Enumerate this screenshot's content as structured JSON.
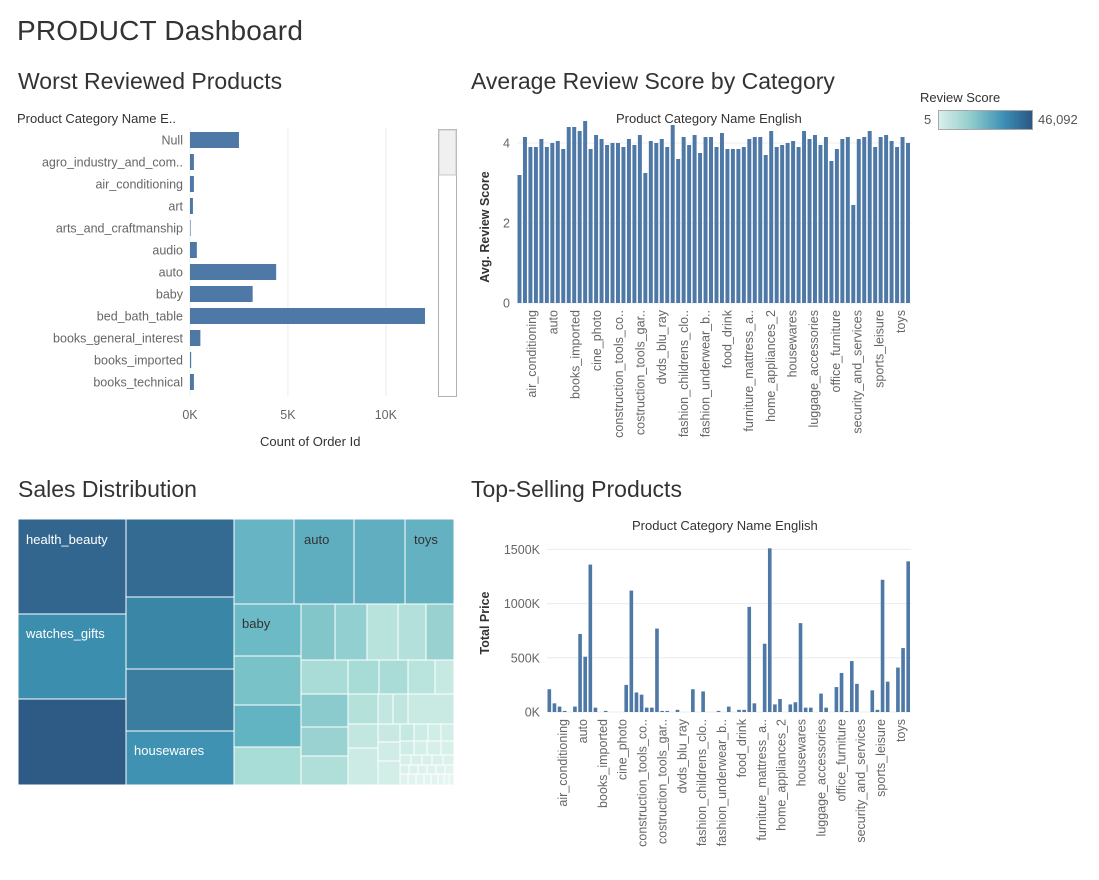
{
  "dashboard": {
    "title": "PRODUCT Dashboard"
  },
  "colors": {
    "bar": "#4e79a7",
    "grid": "#ececec",
    "axis_text": "#666666",
    "legend_low": "#d9efec",
    "legend_high": "#2a5783"
  },
  "worst": {
    "title": "Worst Reviewed Products",
    "header": "Product Category Name E..",
    "xlabel": "Count of Order Id"
  },
  "avg": {
    "title": "Average Review Score by Category",
    "header": "Product Category Name English",
    "ylabel": "Avg. Review Score"
  },
  "legend": {
    "title": "Review Score",
    "min": "5",
    "max": "46,092"
  },
  "sales": {
    "title": "Sales Distribution"
  },
  "top": {
    "title": "Top-Selling Products",
    "header": "Product Category Name English",
    "ylabel": "Total Price"
  },
  "chart_data": [
    {
      "type": "bar",
      "orientation": "horizontal",
      "title": "Worst Reviewed Products",
      "xlabel": "Count of Order Id",
      "ylabel": "Product Category Name E..",
      "xlim": [
        0,
        12500
      ],
      "xticks": [
        0,
        5000,
        10000
      ],
      "xtick_labels": [
        "0K",
        "5K",
        "10K"
      ],
      "categories": [
        "Null",
        "agro_industry_and_com..",
        "air_conditioning",
        "art",
        "arts_and_craftmanship",
        "audio",
        "auto",
        "baby",
        "bed_bath_table",
        "books_general_interest",
        "books_imported",
        "books_technical"
      ],
      "values": [
        2500,
        200,
        200,
        150,
        30,
        350,
        4400,
        3200,
        12000,
        530,
        60,
        200
      ],
      "grid": true
    },
    {
      "type": "bar",
      "title": "Average Review Score by Category",
      "header": "Product Category Name English",
      "ylabel": "Avg. Review Score",
      "ylim": [
        0,
        5
      ],
      "yticks": [
        0,
        2,
        4
      ],
      "tick_labels": [
        "air_conditioning",
        "auto",
        "books_imported",
        "cine_photo",
        "construction_tools_co..",
        "costruction_tools_gar..",
        "dvds_blu_ray",
        "fashion_childrens_clo..",
        "fashion_underwear_b..",
        "food_drink",
        "furniture_mattress_a..",
        "home_appliances_2",
        "housewares",
        "luggage_accessories",
        "office_furniture",
        "security_and_services",
        "sports_leisure",
        "toys"
      ],
      "values": [
        3.2,
        4.15,
        3.9,
        3.9,
        4.1,
        3.9,
        4.0,
        4.05,
        3.85,
        4.4,
        4.4,
        4.3,
        4.55,
        3.85,
        4.2,
        4.1,
        3.95,
        4.0,
        4.0,
        3.9,
        4.1,
        3.95,
        4.2,
        3.25,
        4.05,
        4.0,
        4.1,
        3.9,
        4.45,
        3.6,
        4.15,
        3.95,
        4.2,
        3.75,
        4.15,
        4.15,
        3.9,
        4.25,
        3.85,
        3.85,
        3.85,
        3.9,
        4.1,
        4.15,
        4.15,
        3.7,
        4.3,
        3.9,
        3.95,
        4.0,
        4.05,
        3.9,
        4.3,
        4.1,
        4.2,
        3.95,
        4.15,
        3.55,
        3.85,
        4.1,
        4.15,
        2.45,
        4.1,
        4.15,
        4.3,
        3.9,
        4.15,
        4.2,
        4.05,
        3.9,
        4.15,
        4.0
      ],
      "grid": true
    },
    {
      "type": "heatmap",
      "subtype": "treemap",
      "title": "Sales Distribution",
      "color_legend": {
        "title": "Review Score",
        "min": 5,
        "max": 46092
      },
      "labels": [
        "health_beauty",
        "watches_gifts",
        "housewares",
        "auto",
        "toys",
        "baby"
      ]
    },
    {
      "type": "bar",
      "title": "Top-Selling Products",
      "header": "Product Category Name English",
      "ylabel": "Total Price",
      "ylim": [
        0,
        1550000
      ],
      "yticks": [
        0,
        500000,
        1000000,
        1500000
      ],
      "ytick_labels": [
        "0K",
        "500K",
        "1000K",
        "1500K"
      ],
      "tick_labels": [
        "air_conditioning",
        "auto",
        "books_imported",
        "cine_photo",
        "construction_tools_co..",
        "costruction_tools_gar..",
        "dvds_blu_ray",
        "fashion_childrens_clo..",
        "fashion_underwear_b..",
        "food_drink",
        "furniture_mattress_a..",
        "home_appliances_2",
        "housewares",
        "luggage_accessories",
        "office_furniture",
        "security_and_services",
        "sports_leisure",
        "toys"
      ],
      "values": [
        210000,
        80000,
        50000,
        10000,
        0,
        50000,
        720000,
        510000,
        1360000,
        40000,
        0,
        10000,
        0,
        0,
        0,
        250000,
        1120000,
        180000,
        160000,
        40000,
        40000,
        770000,
        10000,
        10000,
        0,
        20000,
        0,
        0,
        210000,
        0,
        190000,
        0,
        0,
        10000,
        0,
        50000,
        0,
        20000,
        20000,
        970000,
        80000,
        0,
        630000,
        1510000,
        70000,
        120000,
        0,
        70000,
        90000,
        820000,
        40000,
        40000,
        0,
        170000,
        40000,
        0,
        230000,
        360000,
        10000,
        470000,
        260000,
        0,
        0,
        200000,
        20000,
        1220000,
        280000,
        0,
        410000,
        590000,
        1390000
      ],
      "grid": true
    }
  ]
}
